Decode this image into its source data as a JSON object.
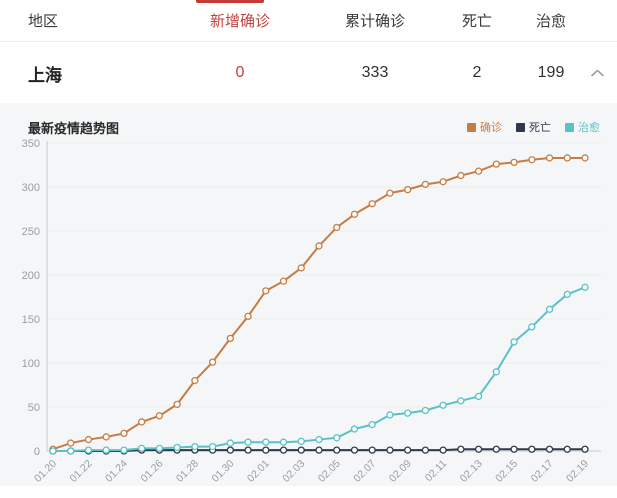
{
  "colors": {
    "accent_red": "#bf4240",
    "tab_indicator_red": "#c43a36",
    "panel_bg": "#f5f6f7",
    "axis_line": "#c6cacd",
    "grid_line": "#ebedee",
    "axis_label": "#9a9ea3"
  },
  "icons": {
    "row_toggle": "chevron-up-icon",
    "legend_swatch": "legend-swatch-icon"
  },
  "table": {
    "headers": [
      "地区",
      "新增确诊",
      "累计确诊",
      "死亡",
      "治愈"
    ],
    "row": {
      "region": "上海",
      "new_confirmed": "0",
      "total_confirmed": "333",
      "deaths": "2",
      "cured": "199"
    }
  },
  "chart": {
    "title": "最新疫情趋势图",
    "legend": [
      {
        "key": "confirmed",
        "label": "确诊",
        "color": "#c77c44"
      },
      {
        "key": "death",
        "label": "死亡",
        "color": "#2d3a4b"
      },
      {
        "key": "cured",
        "label": "治愈",
        "color": "#5ac2c6"
      }
    ]
  },
  "chart_data": {
    "type": "line",
    "title": "最新疫情趋势图",
    "xlabel": "",
    "ylabel": "",
    "ylim": [
      0,
      350
    ],
    "yticks": [
      0,
      50,
      100,
      150,
      200,
      250,
      300,
      350
    ],
    "grid": true,
    "legend_position": "top-right",
    "x": [
      "01.20",
      "01.21",
      "01.22",
      "01.23",
      "01.24",
      "01.25",
      "01.26",
      "01.27",
      "01.28",
      "01.29",
      "01.30",
      "01.31",
      "02.01",
      "02.02",
      "02.03",
      "02.04",
      "02.05",
      "02.06",
      "02.07",
      "02.08",
      "02.09",
      "02.10",
      "02.11",
      "02.12",
      "02.13",
      "02.14",
      "02.15",
      "02.16",
      "02.17",
      "02.18",
      "02.19"
    ],
    "x_tick_labels": [
      "01.20",
      "01.22",
      "01.24",
      "01.26",
      "01.28",
      "01.30",
      "02.01",
      "02.03",
      "02.05",
      "02.07",
      "02.09",
      "02.11",
      "02.13",
      "02.15",
      "02.17",
      "02.19"
    ],
    "series": [
      {
        "name": "确诊",
        "color": "#c77c44",
        "values": [
          2,
          9,
          13,
          16,
          20,
          33,
          40,
          53,
          80,
          101,
          128,
          153,
          182,
          193,
          208,
          233,
          254,
          269,
          281,
          293,
          297,
          303,
          306,
          313,
          318,
          326,
          328,
          331,
          333,
          333,
          333
        ]
      },
      {
        "name": "死亡",
        "color": "#2d3a4b",
        "values": [
          0,
          0,
          0,
          0,
          0,
          1,
          1,
          1,
          1,
          1,
          1,
          1,
          1,
          1,
          1,
          1,
          1,
          1,
          1,
          1,
          1,
          1,
          1,
          2,
          2,
          2,
          2,
          2,
          2,
          2,
          2
        ]
      },
      {
        "name": "治愈",
        "color": "#5ac2c6",
        "values": [
          0,
          0,
          1,
          1,
          1,
          3,
          3,
          4,
          5,
          5,
          9,
          10,
          10,
          10,
          11,
          13,
          15,
          25,
          30,
          41,
          43,
          46,
          52,
          57,
          62,
          90,
          124,
          141,
          161,
          178,
          186
        ]
      }
    ]
  }
}
